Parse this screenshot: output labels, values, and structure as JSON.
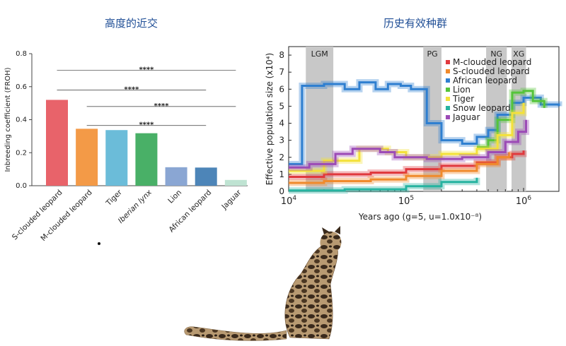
{
  "titles": {
    "left": "高度的近交",
    "right": "历史有效种群"
  },
  "chart_data": [
    {
      "type": "bar",
      "ylabel": "Inbreeding coefficient (FROH)",
      "ylim": [
        0,
        0.8
      ],
      "yticks": [
        0.0,
        0.2,
        0.4,
        0.6,
        0.8
      ],
      "categories": [
        "S-clouded leopard",
        "M-clouded leopard",
        "Tiger",
        "Iberian lynx",
        "Lion",
        "African leopard",
        "Jaguar"
      ],
      "values": [
        0.52,
        0.345,
        0.337,
        0.318,
        0.112,
        0.11,
        0.035
      ],
      "colors": [
        "#e8636a",
        "#f39a47",
        "#6bbcd9",
        "#49b067",
        "#8aa6d3",
        "#4d85b8",
        "#bfe3d2"
      ],
      "significance": [
        {
          "from": 0,
          "to": 6,
          "label": "****",
          "y": 0.7
        },
        {
          "from": 0,
          "to": 5,
          "label": "****",
          "y": 0.58
        },
        {
          "from": 1,
          "to": 6,
          "label": "****",
          "y": 0.48
        },
        {
          "from": 1,
          "to": 5,
          "label": "****",
          "y": 0.365
        }
      ]
    },
    {
      "type": "line",
      "xlabel": "Years ago (g=5, u=1.0x10⁻⁸)",
      "ylabel": "Effective population size (x10⁴)",
      "xscale": "log",
      "xlim": [
        10000,
        2000000
      ],
      "ylim": [
        0,
        8.5
      ],
      "yticks": [
        0,
        1,
        2,
        3,
        4,
        5,
        6,
        7,
        8
      ],
      "xticks": [
        {
          "value": 10000,
          "base": "10",
          "exp": "4"
        },
        {
          "value": 100000,
          "base": "10",
          "exp": "5"
        },
        {
          "value": 1000000,
          "base": "10",
          "exp": "6"
        }
      ],
      "periods": [
        {
          "label": "LGM",
          "from": 14000,
          "to": 24000
        },
        {
          "label": "PG",
          "from": 140000,
          "to": 200000
        },
        {
          "label": "NG",
          "from": 480000,
          "to": 720000
        },
        {
          "label": "XG",
          "from": 790000,
          "to": 1050000
        }
      ],
      "legend_position": "top-right",
      "series": [
        {
          "name": "M-clouded leopard",
          "color": "#e0393e",
          "points": [
            [
              10000,
              0.85
            ],
            [
              20000,
              1.0
            ],
            [
              50000,
              1.1
            ],
            [
              100000,
              1.3
            ],
            [
              200000,
              1.5
            ],
            [
              400000,
              1.7
            ],
            [
              600000,
              2.0
            ],
            [
              800000,
              2.2
            ],
            [
              1000000,
              2.4
            ]
          ]
        },
        {
          "name": "S-clouded leopard",
          "color": "#f08a2c",
          "points": [
            [
              10000,
              0.5
            ],
            [
              20000,
              0.6
            ],
            [
              50000,
              0.7
            ],
            [
              100000,
              0.9
            ],
            [
              200000,
              1.2
            ],
            [
              400000,
              1.6
            ],
            [
              600000,
              2.0
            ],
            [
              750000,
              2.3
            ]
          ]
        },
        {
          "name": "African leopard",
          "color": "#2f7fd0",
          "points": [
            [
              10000,
              1.6
            ],
            [
              12000,
              1.6
            ],
            [
              13000,
              6.2
            ],
            [
              20000,
              6.3
            ],
            [
              30000,
              6.0
            ],
            [
              40000,
              6.4
            ],
            [
              55000,
              6.0
            ],
            [
              70000,
              6.3
            ],
            [
              90000,
              6.2
            ],
            [
              110000,
              6.0
            ],
            [
              150000,
              4.0
            ],
            [
              200000,
              3.0
            ],
            [
              300000,
              2.8
            ],
            [
              400000,
              3.2
            ],
            [
              500000,
              3.6
            ],
            [
              600000,
              4.5
            ],
            [
              800000,
              5.2
            ],
            [
              1000000,
              5.5
            ],
            [
              1400000,
              5.1
            ],
            [
              2000000,
              5.0
            ]
          ]
        },
        {
          "name": "Lion",
          "color": "#55c43a",
          "points": [
            [
              400000,
              2.6
            ],
            [
              500000,
              3.0
            ],
            [
              600000,
              4.2
            ],
            [
              800000,
              5.8
            ],
            [
              1000000,
              5.9
            ],
            [
              1200000,
              5.3
            ],
            [
              1500000,
              4.9
            ]
          ]
        },
        {
          "name": "Tiger",
          "color": "#f3e13a",
          "points": [
            [
              10000,
              1.2
            ],
            [
              20000,
              1.8
            ],
            [
              40000,
              2.5
            ],
            [
              70000,
              2.3
            ],
            [
              100000,
              2.0
            ],
            [
              200000,
              2.2
            ],
            [
              400000,
              2.5
            ],
            [
              600000,
              3.3
            ],
            [
              800000,
              4.6
            ],
            [
              1000000,
              5.2
            ]
          ]
        },
        {
          "name": "Snow leopard",
          "color": "#26b3a0",
          "points": [
            [
              10000,
              0.05
            ],
            [
              30000,
              0.12
            ],
            [
              100000,
              0.3
            ],
            [
              200000,
              0.55
            ],
            [
              400000,
              0.8
            ]
          ]
        },
        {
          "name": "Jaguar",
          "color": "#9c4bb6",
          "points": [
            [
              10000,
              1.4
            ],
            [
              15000,
              1.6
            ],
            [
              25000,
              2.2
            ],
            [
              35000,
              2.5
            ],
            [
              60000,
              2.3
            ],
            [
              80000,
              2.0
            ],
            [
              150000,
              1.9
            ],
            [
              300000,
              2.0
            ],
            [
              500000,
              2.3
            ],
            [
              700000,
              2.9
            ],
            [
              900000,
              3.5
            ],
            [
              1050000,
              4.2
            ]
          ]
        }
      ]
    }
  ]
}
